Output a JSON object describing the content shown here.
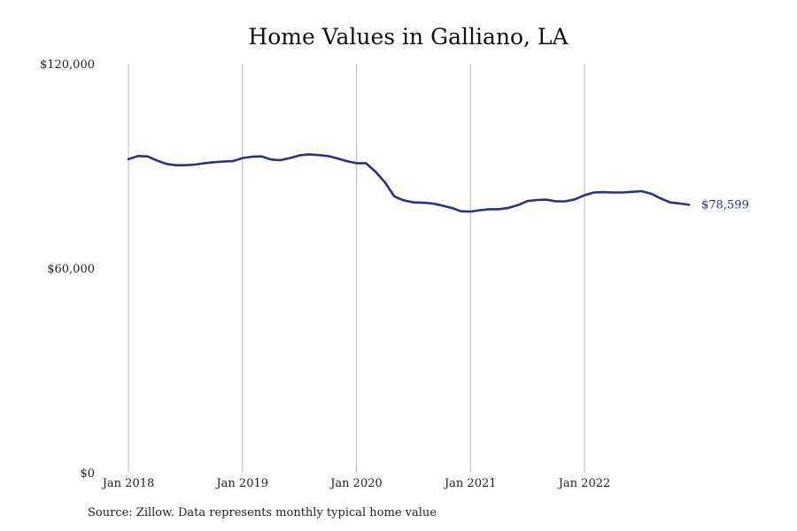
{
  "source_note": "Source: Zillow. Data represents monthly typical home value",
  "colors": {
    "line": "#2e2e8f",
    "grid": "#b8b8b8"
  },
  "chart_data": {
    "type": "line",
    "title": "Home Values in Galliano, LA",
    "xlabel": "",
    "ylabel": "",
    "grid": "vertical",
    "ylim": [
      0,
      120000
    ],
    "y_ticks": [
      {
        "value": 0,
        "label": "$0"
      },
      {
        "value": 60000,
        "label": "$60,000"
      },
      {
        "value": 120000,
        "label": "$120,000"
      }
    ],
    "x_ticks": [
      {
        "date": "2018-01",
        "label": "Jan 2018"
      },
      {
        "date": "2019-01",
        "label": "Jan 2019"
      },
      {
        "date": "2020-01",
        "label": "Jan 2020"
      },
      {
        "date": "2021-01",
        "label": "Jan 2021"
      },
      {
        "date": "2022-01",
        "label": "Jan 2022"
      }
    ],
    "end_label": "$78,599",
    "series": [
      {
        "x": [
          "2018-01",
          "2018-02",
          "2018-03",
          "2018-04",
          "2018-05",
          "2018-06",
          "2018-07",
          "2018-08",
          "2018-09",
          "2018-10",
          "2018-11",
          "2018-12",
          "2019-01",
          "2019-02",
          "2019-03",
          "2019-04",
          "2019-05",
          "2019-06",
          "2019-07",
          "2019-08",
          "2019-09",
          "2019-10",
          "2019-11",
          "2019-12",
          "2020-01",
          "2020-02",
          "2020-03",
          "2020-04",
          "2020-05",
          "2020-06",
          "2020-07",
          "2020-08",
          "2020-09",
          "2020-10",
          "2020-11",
          "2020-12",
          "2021-01",
          "2021-02",
          "2021-03",
          "2021-04",
          "2021-05",
          "2021-06",
          "2021-07",
          "2021-08",
          "2021-09",
          "2021-10",
          "2021-11",
          "2021-12",
          "2022-01",
          "2022-02",
          "2022-03",
          "2022-04",
          "2022-05",
          "2022-06",
          "2022-07",
          "2022-08",
          "2022-09",
          "2022-10",
          "2022-11",
          "2022-12"
        ],
        "values": [
          92000,
          92900,
          92800,
          91600,
          90600,
          90200,
          90200,
          90400,
          90800,
          91100,
          91300,
          91400,
          92300,
          92700,
          92800,
          91900,
          91700,
          92300,
          93100,
          93400,
          93200,
          92900,
          92200,
          91400,
          90800,
          90800,
          88300,
          85200,
          81000,
          79900,
          79300,
          79200,
          79000,
          78400,
          77700,
          76700,
          76600,
          77000,
          77300,
          77300,
          77700,
          78500,
          79700,
          80000,
          80100,
          79600,
          79600,
          80200,
          81400,
          82200,
          82300,
          82200,
          82200,
          82400,
          82600,
          81900,
          80500,
          79300,
          79000,
          78599
        ]
      }
    ]
  }
}
